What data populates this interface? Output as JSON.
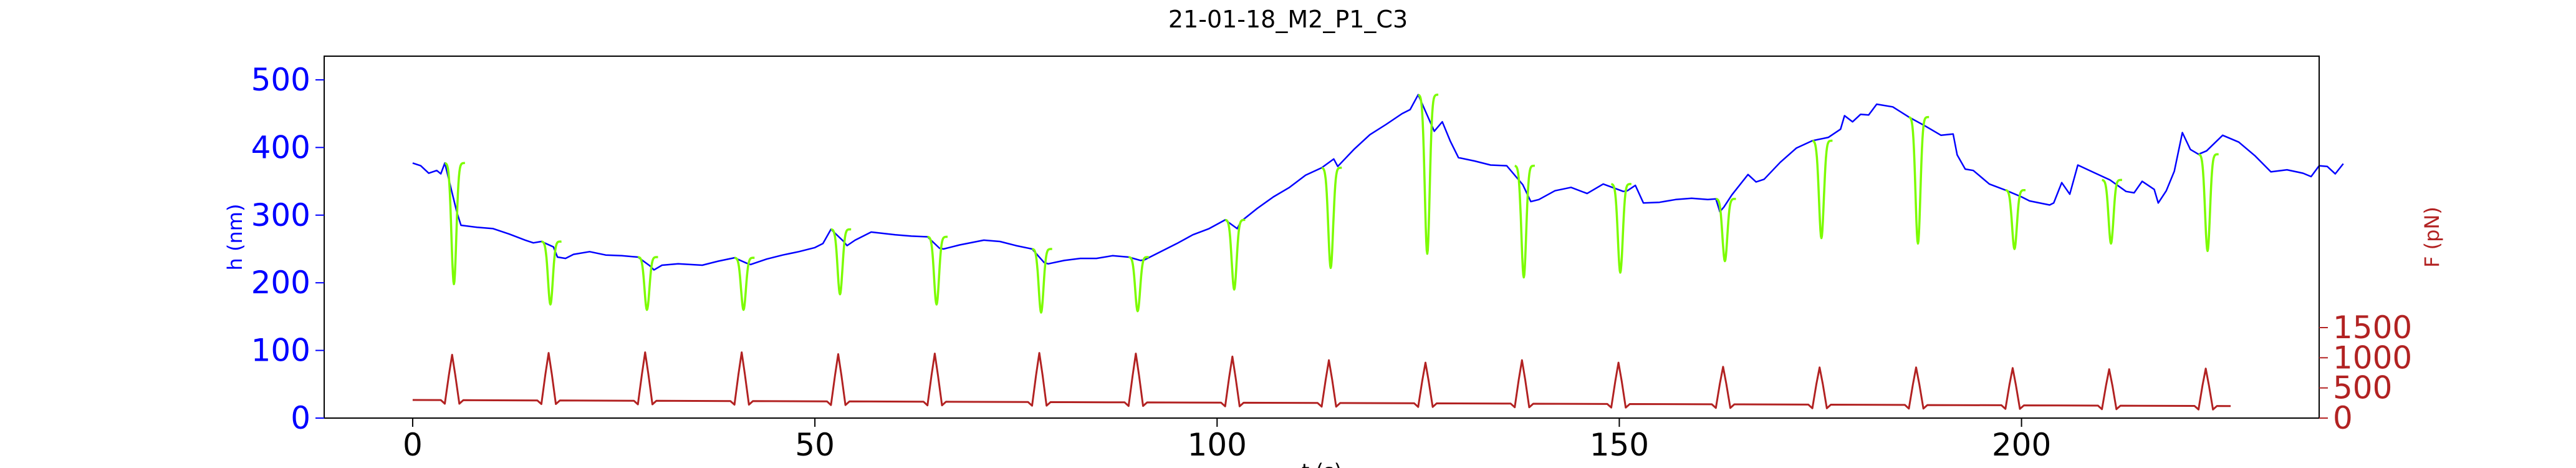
{
  "chart_data": {
    "type": "line",
    "title": "21-01-18_M2_P1_C3",
    "xlabel": "t (s)",
    "ylabel_left": "h (nm)",
    "ylabel_right": "F (pN)",
    "xlim": [
      -11,
      237
    ],
    "ylim_left": [
      0,
      535
    ],
    "ylim_right": [
      0,
      6000
    ],
    "xticks": [
      0,
      50,
      100,
      150,
      200
    ],
    "yticks_left": [
      0,
      100,
      200,
      300,
      400,
      500
    ],
    "yticks_right": [
      0,
      500,
      1000,
      1500
    ],
    "grid": false,
    "colors": {
      "height_baseline": "#0000ff",
      "height_pulse": "#7cfc00",
      "force": "#b22222",
      "left_axis": "#0000ff",
      "right_axis": "#b22222"
    },
    "height_baseline": [
      [
        0,
        377
      ],
      [
        1,
        373
      ],
      [
        2,
        362
      ],
      [
        3,
        366
      ],
      [
        3.5,
        361
      ],
      [
        4,
        377
      ],
      [
        5.5,
        304
      ],
      [
        6,
        285
      ],
      [
        8,
        282
      ],
      [
        10,
        280
      ],
      [
        12,
        272
      ],
      [
        14,
        263
      ],
      [
        15,
        259
      ],
      [
        16,
        261
      ],
      [
        17.5,
        253
      ],
      [
        18,
        238
      ],
      [
        19,
        236
      ],
      [
        20,
        242
      ],
      [
        22,
        246
      ],
      [
        24,
        241
      ],
      [
        26,
        240
      ],
      [
        28,
        238
      ],
      [
        29.5,
        225
      ],
      [
        30,
        219
      ],
      [
        31,
        226
      ],
      [
        33,
        228
      ],
      [
        36,
        226
      ],
      [
        38,
        232
      ],
      [
        40,
        237
      ],
      [
        41.5,
        229
      ],
      [
        42,
        227
      ],
      [
        44,
        235
      ],
      [
        46,
        241
      ],
      [
        48,
        246
      ],
      [
        50,
        252
      ],
      [
        51,
        258
      ],
      [
        52,
        279
      ],
      [
        53.5,
        262
      ],
      [
        54,
        255
      ],
      [
        55,
        263
      ],
      [
        57,
        275
      ],
      [
        60,
        271
      ],
      [
        62,
        269
      ],
      [
        64,
        268
      ],
      [
        65.5,
        251
      ],
      [
        66,
        250
      ],
      [
        68,
        256
      ],
      [
        71,
        263
      ],
      [
        73,
        261
      ],
      [
        75,
        255
      ],
      [
        77,
        250
      ],
      [
        78.5,
        230
      ],
      [
        79,
        228
      ],
      [
        81,
        233
      ],
      [
        83,
        236
      ],
      [
        85,
        236
      ],
      [
        87,
        240
      ],
      [
        89,
        238
      ],
      [
        90.5,
        233
      ],
      [
        91,
        234
      ],
      [
        93,
        246
      ],
      [
        95,
        258
      ],
      [
        97,
        271
      ],
      [
        99,
        280
      ],
      [
        101,
        293
      ],
      [
        102.5,
        280
      ],
      [
        103,
        291
      ],
      [
        105,
        310
      ],
      [
        107,
        327
      ],
      [
        109,
        341
      ],
      [
        111,
        359
      ],
      [
        113,
        370
      ],
      [
        114.5,
        383
      ],
      [
        115,
        372
      ],
      [
        117,
        397
      ],
      [
        119,
        419
      ],
      [
        121,
        434
      ],
      [
        123,
        450
      ],
      [
        124,
        456
      ],
      [
        125,
        478
      ],
      [
        127,
        424
      ],
      [
        128,
        438
      ],
      [
        129,
        409
      ],
      [
        130,
        385
      ],
      [
        132,
        380
      ],
      [
        134,
        374
      ],
      [
        136,
        373
      ],
      [
        138,
        345
      ],
      [
        139,
        320
      ],
      [
        140,
        323
      ],
      [
        142,
        336
      ],
      [
        144,
        341
      ],
      [
        146,
        332
      ],
      [
        148,
        346
      ],
      [
        150.5,
        335
      ],
      [
        151,
        336
      ],
      [
        152,
        344
      ],
      [
        153,
        318
      ],
      [
        155,
        319
      ],
      [
        157,
        323
      ],
      [
        159,
        325
      ],
      [
        161,
        323
      ],
      [
        162,
        324
      ],
      [
        162.5,
        305
      ],
      [
        163,
        312
      ],
      [
        164,
        330
      ],
      [
        166,
        360
      ],
      [
        167,
        349
      ],
      [
        168,
        353
      ],
      [
        170,
        378
      ],
      [
        172,
        399
      ],
      [
        174,
        410
      ],
      [
        176,
        415
      ],
      [
        177.5,
        427
      ],
      [
        178,
        447
      ],
      [
        179,
        438
      ],
      [
        180,
        449
      ],
      [
        181,
        448
      ],
      [
        182,
        464
      ],
      [
        184,
        460
      ],
      [
        186,
        445
      ],
      [
        188,
        432
      ],
      [
        190,
        418
      ],
      [
        191.5,
        420
      ],
      [
        192,
        389
      ],
      [
        193,
        368
      ],
      [
        194,
        366
      ],
      [
        196,
        346
      ],
      [
        198,
        337
      ],
      [
        200,
        327
      ],
      [
        201,
        321
      ],
      [
        203.5,
        315
      ],
      [
        204,
        318
      ],
      [
        205,
        348
      ],
      [
        206,
        331
      ],
      [
        207,
        374
      ],
      [
        209,
        363
      ],
      [
        211,
        352
      ],
      [
        213,
        335
      ],
      [
        214,
        333
      ],
      [
        215,
        350
      ],
      [
        216.5,
        338
      ],
      [
        217,
        318
      ],
      [
        218,
        336
      ],
      [
        219,
        365
      ],
      [
        220,
        422
      ],
      [
        221,
        397
      ],
      [
        222,
        390
      ],
      [
        223,
        395
      ],
      [
        225,
        418
      ],
      [
        227,
        408
      ],
      [
        229,
        388
      ],
      [
        231,
        364
      ],
      [
        233,
        367
      ],
      [
        235,
        362
      ],
      [
        236,
        357
      ],
      [
        237,
        373
      ],
      [
        238,
        372
      ],
      [
        239,
        361
      ],
      [
        240,
        376
      ]
    ],
    "height_pulses": [
      [
        4,
        377,
        198
      ],
      [
        16,
        261,
        168
      ],
      [
        28,
        238,
        160
      ],
      [
        40,
        237,
        160
      ],
      [
        52,
        279,
        183
      ],
      [
        64,
        268,
        168
      ],
      [
        77,
        250,
        156
      ],
      [
        89,
        238,
        158
      ],
      [
        101,
        293,
        190
      ],
      [
        113,
        370,
        222
      ],
      [
        125,
        478,
        243
      ],
      [
        137,
        373,
        208
      ],
      [
        149,
        346,
        215
      ],
      [
        162,
        324,
        232
      ],
      [
        174,
        410,
        266
      ],
      [
        186,
        445,
        258
      ],
      [
        198,
        337,
        250
      ],
      [
        210,
        352,
        258
      ],
      [
        222,
        390,
        247
      ]
    ],
    "force_baseline_start": 300,
    "force_baseline_end": 200,
    "force_peaks": [
      1050,
      1080,
      1090,
      1090,
      1060,
      1070,
      1080,
      1070,
      1020,
      960,
      920,
      960,
      920,
      850,
      840,
      840,
      830,
      810,
      820
    ],
    "force_peak_times": [
      4,
      16,
      28,
      40,
      52,
      64,
      77,
      89,
      101,
      113,
      125,
      137,
      149,
      162,
      174,
      186,
      198,
      210,
      222
    ],
    "t_end": 226
  }
}
